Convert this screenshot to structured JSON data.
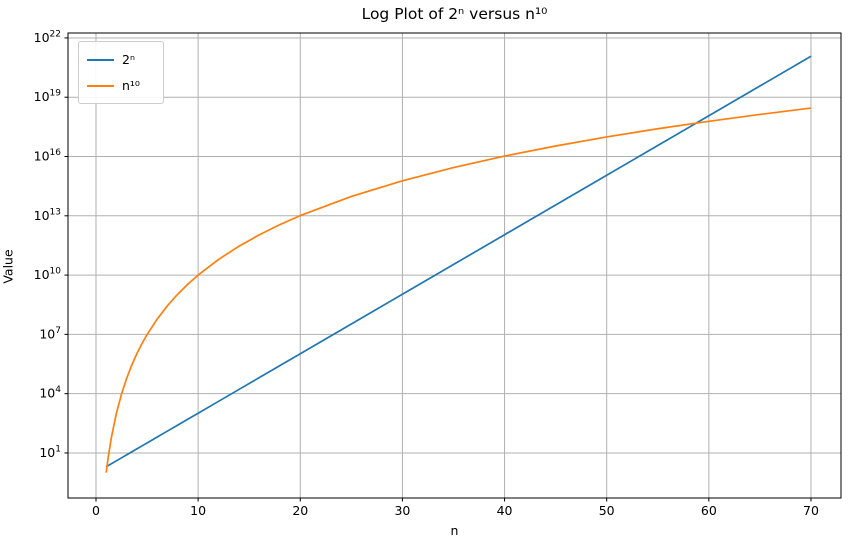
{
  "chart_data": {
    "type": "line",
    "title": "Log Plot of 2ⁿ versus n¹⁰",
    "xlabel": "n",
    "ylabel": "Value",
    "yscale": "log",
    "grid": true,
    "grid_color": "#b0b0b0",
    "spine_color": "#000000",
    "background_color": "#ffffff",
    "legend_position": "upper-left",
    "xlim": [
      -2.74,
      72.94
    ],
    "ylim_log10": [
      -1.28,
      22.25
    ],
    "xticks": [
      0,
      10,
      20,
      30,
      40,
      50,
      60,
      70
    ],
    "ytick_base": "10",
    "ytick_exponents": [
      1,
      4,
      7,
      10,
      13,
      16,
      19,
      22
    ],
    "x": [
      1,
      1.2,
      1.5,
      2,
      2.5,
      3,
      3.5,
      4,
      4.5,
      5,
      6,
      7,
      8,
      9,
      10,
      12,
      14,
      16,
      18,
      20,
      25,
      30,
      35,
      40,
      45,
      50,
      55,
      60,
      65,
      70
    ],
    "series": [
      {
        "name": "2ⁿ",
        "color": "#1f77b4",
        "log10_values": [
          0.301,
          0.361,
          0.452,
          0.602,
          0.753,
          0.903,
          1.054,
          1.204,
          1.355,
          1.505,
          1.806,
          2.107,
          2.408,
          2.709,
          3.01,
          3.612,
          4.214,
          4.816,
          5.419,
          6.021,
          7.526,
          9.031,
          10.536,
          12.041,
          13.546,
          15.052,
          16.557,
          18.062,
          19.567,
          21.072
        ]
      },
      {
        "name": "n¹⁰",
        "color": "#ff7f0e",
        "log10_values": [
          0.0,
          0.792,
          1.761,
          3.01,
          3.979,
          4.771,
          5.441,
          6.021,
          6.532,
          6.99,
          7.782,
          8.451,
          9.031,
          9.542,
          10.0,
          10.792,
          11.461,
          12.041,
          12.553,
          13.01,
          13.979,
          14.771,
          15.441,
          16.021,
          16.532,
          16.99,
          17.404,
          17.782,
          18.129,
          18.451
        ]
      }
    ]
  }
}
